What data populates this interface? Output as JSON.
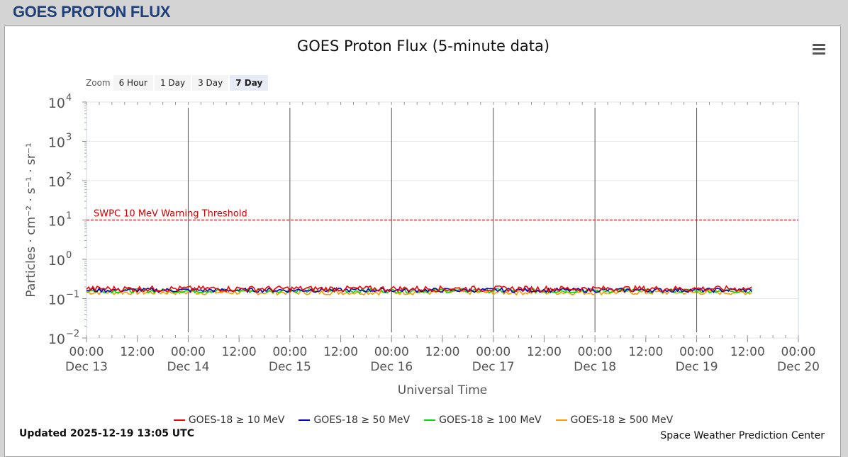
{
  "page": {
    "title": "GOES PROTON FLUX",
    "menu_icon": "hamburger-menu-icon",
    "updated": "Updated 2025-12-19 13:05 UTC",
    "credit": "Space Weather Prediction Center"
  },
  "zoom": {
    "label": "Zoom",
    "buttons": [
      "6 Hour",
      "1 Day",
      "3 Day",
      "7 Day"
    ],
    "active": "7 Day"
  },
  "chart_data": {
    "type": "line",
    "title": "GOES Proton Flux (5-minute data)",
    "xlabel": "Universal Time",
    "ylabel": "Particles · cm⁻² · s⁻¹ · sr⁻¹",
    "y_scale": "log",
    "ylim": [
      0.01,
      10000
    ],
    "y_ticks": [
      {
        "base": "10",
        "exp": "4"
      },
      {
        "base": "10",
        "exp": "3"
      },
      {
        "base": "10",
        "exp": "2"
      },
      {
        "base": "10",
        "exp": "1"
      },
      {
        "base": "10",
        "exp": "0"
      },
      {
        "base": "10",
        "exp": "−1"
      },
      {
        "base": "10",
        "exp": "−2"
      }
    ],
    "xlim": [
      "2025-12-13 00:00",
      "2025-12-20 00:00"
    ],
    "x_ticks": [
      {
        "time": "00:00",
        "date": "Dec 13"
      },
      {
        "time": "12:00",
        "date": ""
      },
      {
        "time": "00:00",
        "date": "Dec 14"
      },
      {
        "time": "12:00",
        "date": ""
      },
      {
        "time": "00:00",
        "date": "Dec 15"
      },
      {
        "time": "12:00",
        "date": ""
      },
      {
        "time": "00:00",
        "date": "Dec 16"
      },
      {
        "time": "12:00",
        "date": ""
      },
      {
        "time": "00:00",
        "date": "Dec 17"
      },
      {
        "time": "12:00",
        "date": ""
      },
      {
        "time": "00:00",
        "date": "Dec 18"
      },
      {
        "time": "12:00",
        "date": ""
      },
      {
        "time": "00:00",
        "date": "Dec 19"
      },
      {
        "time": "12:00",
        "date": ""
      },
      {
        "time": "00:00",
        "date": "Dec 20"
      }
    ],
    "day_lines": [
      "2025-12-14 00:00",
      "2025-12-15 00:00",
      "2025-12-16 00:00",
      "2025-12-17 00:00",
      "2025-12-18 00:00",
      "2025-12-19 00:00"
    ],
    "threshold": {
      "value": 10,
      "label": "SWPC 10 MeV Warning Threshold",
      "color": "#cc0000"
    },
    "data_end": "2025-12-19 13:05",
    "grid": true,
    "legend_position": "bottom",
    "series": [
      {
        "name": "GOES-18 ≥ 10 MeV",
        "color": "#ff0000",
        "level": 0.18,
        "spread": 0.03
      },
      {
        "name": "GOES-18 ≥ 50 MeV",
        "color": "#0000cc",
        "level": 0.165,
        "spread": 0.02
      },
      {
        "name": "GOES-18 ≥ 100 MeV",
        "color": "#00dd00",
        "level": 0.16,
        "spread": 0.02
      },
      {
        "name": "GOES-18 ≥ 500 MeV",
        "color": "#ff9900",
        "level": 0.145,
        "spread": 0.02
      }
    ]
  }
}
